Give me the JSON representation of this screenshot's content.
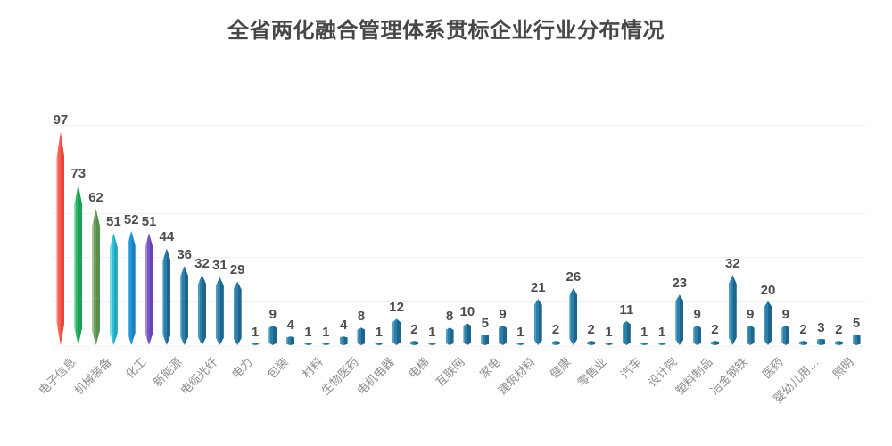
{
  "title": "全省两化融合管理体系贯标企业行业分布情况",
  "chart_data": {
    "type": "bar",
    "title": "全省两化融合管理体系贯标企业行业分布情况",
    "ylim": [
      0,
      100
    ],
    "grid_step": 20,
    "grid": "on",
    "legend": "none",
    "y_axis_tick_labels": "none",
    "x_label_rotation_deg": 45,
    "x_label_interval": 2,
    "bar_shape": "spindle",
    "value_label_color": "#4d4d4d",
    "axis_label_color": "#8c8c8c",
    "gridline_color": "#efefef",
    "axis_line_color": "#e0e0e0",
    "categories_visible": [
      "电子信息",
      "机械装备",
      "化工",
      "新能源",
      "电缆光纤",
      "电力",
      "包装",
      "材料",
      "生物医药",
      "电机电器",
      "电梯",
      "互联网",
      "家电",
      "建筑材料",
      "健康",
      "零售业",
      "汽车",
      "设计院",
      "塑料制品",
      "冶金钢铁",
      "医药",
      "婴幼儿用…",
      "照明"
    ],
    "values": [
      97,
      73,
      62,
      51,
      52,
      51,
      44,
      36,
      32,
      31,
      29,
      1,
      9,
      4,
      1,
      1,
      4,
      8,
      1,
      12,
      2,
      1,
      8,
      10,
      5,
      9,
      1,
      21,
      2,
      26,
      2,
      1,
      11,
      1,
      1,
      23,
      9,
      2,
      32,
      9,
      20,
      9,
      2,
      3,
      2,
      5
    ],
    "bars": [
      {
        "label": "电子信息",
        "value": 97,
        "color": "red"
      },
      {
        "label": "",
        "value": 73,
        "color": "green"
      },
      {
        "label": "机械装备",
        "value": 62,
        "color": "olive"
      },
      {
        "label": "",
        "value": 51,
        "color": "cyan"
      },
      {
        "label": "化工",
        "value": 52,
        "color": "blue"
      },
      {
        "label": "",
        "value": 51,
        "color": "purple"
      },
      {
        "label": "新能源",
        "value": 44,
        "color": "steel"
      },
      {
        "label": "",
        "value": 36,
        "color": "steel"
      },
      {
        "label": "电缆光纤",
        "value": 32,
        "color": "steel"
      },
      {
        "label": "",
        "value": 31,
        "color": "steel"
      },
      {
        "label": "电力",
        "value": 29,
        "color": "steel"
      },
      {
        "label": "",
        "value": 1,
        "color": "steel"
      },
      {
        "label": "包装",
        "value": 9,
        "color": "steel"
      },
      {
        "label": "",
        "value": 4,
        "color": "steel"
      },
      {
        "label": "材料",
        "value": 1,
        "color": "steel"
      },
      {
        "label": "",
        "value": 1,
        "color": "steel"
      },
      {
        "label": "生物医药",
        "value": 4,
        "color": "steel"
      },
      {
        "label": "",
        "value": 8,
        "color": "steel"
      },
      {
        "label": "电机电器",
        "value": 1,
        "color": "steel"
      },
      {
        "label": "",
        "value": 12,
        "color": "steel"
      },
      {
        "label": "电梯",
        "value": 2,
        "color": "steel"
      },
      {
        "label": "",
        "value": 1,
        "color": "steel"
      },
      {
        "label": "互联网",
        "value": 8,
        "color": "steel"
      },
      {
        "label": "",
        "value": 10,
        "color": "steel"
      },
      {
        "label": "家电",
        "value": 5,
        "color": "steel"
      },
      {
        "label": "",
        "value": 9,
        "color": "steel"
      },
      {
        "label": "建筑材料",
        "value": 1,
        "color": "steel"
      },
      {
        "label": "",
        "value": 21,
        "color": "steel"
      },
      {
        "label": "健康",
        "value": 2,
        "color": "steel"
      },
      {
        "label": "",
        "value": 26,
        "color": "steel"
      },
      {
        "label": "零售业",
        "value": 2,
        "color": "steel"
      },
      {
        "label": "",
        "value": 1,
        "color": "steel"
      },
      {
        "label": "汽车",
        "value": 11,
        "color": "steel"
      },
      {
        "label": "",
        "value": 1,
        "color": "steel"
      },
      {
        "label": "设计院",
        "value": 1,
        "color": "steel"
      },
      {
        "label": "",
        "value": 23,
        "color": "steel"
      },
      {
        "label": "塑料制品",
        "value": 9,
        "color": "steel"
      },
      {
        "label": "",
        "value": 2,
        "color": "steel"
      },
      {
        "label": "冶金钢铁",
        "value": 32,
        "color": "steel"
      },
      {
        "label": "",
        "value": 9,
        "color": "steel"
      },
      {
        "label": "医药",
        "value": 20,
        "color": "steel"
      },
      {
        "label": "",
        "value": 9,
        "color": "steel"
      },
      {
        "label": "婴幼儿用…",
        "value": 2,
        "color": "steel"
      },
      {
        "label": "",
        "value": 3,
        "color": "steel"
      },
      {
        "label": "照明",
        "value": 2,
        "color": "steel"
      },
      {
        "label": "",
        "value": 5,
        "color": "steel"
      }
    ],
    "palette": {
      "red": {
        "light": "#fd8e81",
        "main": "#f75f53",
        "dark": "#e4473d"
      },
      "green": {
        "light": "#66d595",
        "main": "#2bb766",
        "dark": "#1f9e55"
      },
      "olive": {
        "light": "#9fc48f",
        "main": "#6aa05c",
        "dark": "#588e4c"
      },
      "cyan": {
        "light": "#76dcea",
        "main": "#30c1d9",
        "dark": "#22a6c3"
      },
      "blue": {
        "light": "#5eb4e7",
        "main": "#2095d9",
        "dark": "#1880c1"
      },
      "purple": {
        "light": "#a689da",
        "main": "#7c55c5",
        "dark": "#6843b1"
      },
      "steel": {
        "light": "#4f9bbd",
        "main": "#2a80a9",
        "dark": "#1e648c"
      }
    }
  }
}
